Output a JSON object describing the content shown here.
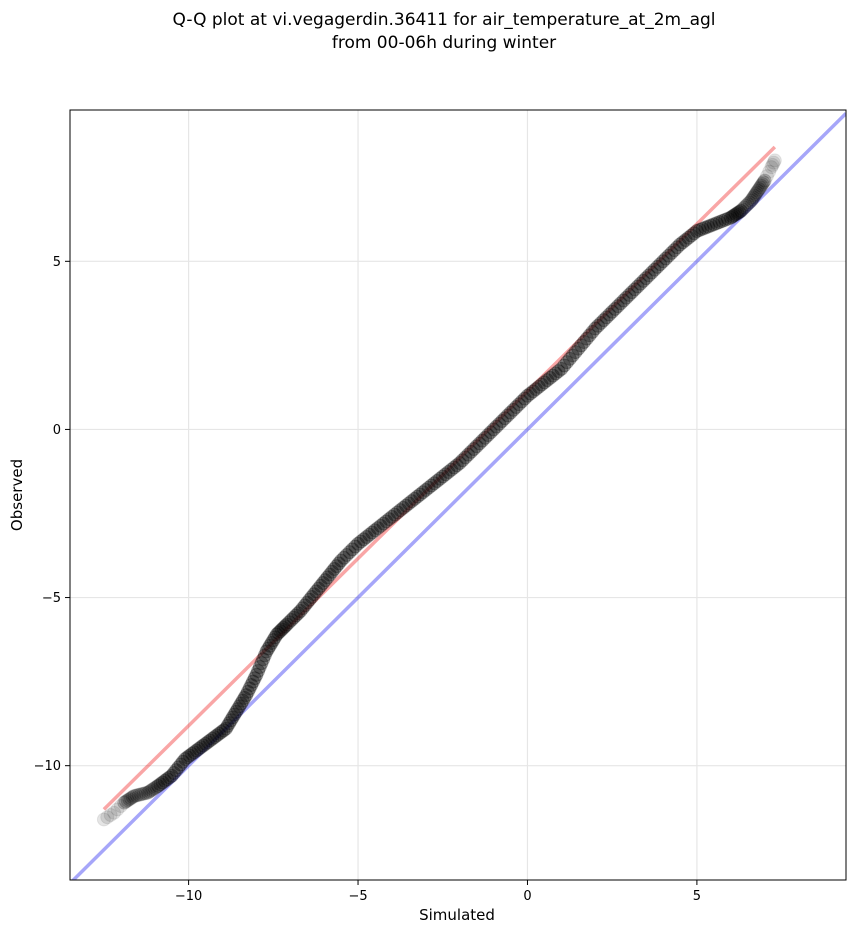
{
  "figure": {
    "title_line1": "Q-Q plot at vi.vegagerdin.36411 for air_temperature_at_2m_agl",
    "title_line2": "from 00-06h during winter"
  },
  "chart_data": {
    "type": "scatter",
    "title": "Q-Q plot at vi.vegagerdin.36411 for air_temperature_at_2m_agl from 00-06h during winter",
    "xlabel": "Simulated",
    "ylabel": "Observed",
    "xlim": [
      -13.5,
      9.4
    ],
    "ylim": [
      -13.4,
      9.5
    ],
    "xticks": [
      -10,
      -5,
      0,
      5
    ],
    "yticks": [
      -10,
      -5,
      0,
      5
    ],
    "xtick_labels": [
      "−10",
      "−5",
      "0",
      "5"
    ],
    "ytick_labels": [
      "−10",
      "−5",
      "0",
      "5"
    ],
    "grid": true,
    "colors": {
      "points": "#000000",
      "identity_line": "#0000ee",
      "fit_line": "#ee0000"
    },
    "quantiles_simulated": [
      -12.5,
      -12.2,
      -11.9,
      -11.6,
      -11.2,
      -10.9,
      -10.5,
      -10.1,
      -9.7,
      -9.3,
      -8.9,
      -8.6,
      -8.3,
      -8.0,
      -7.7,
      -7.4,
      -7.1,
      -6.7,
      -6.3,
      -5.9,
      -5.5,
      -5.0,
      -4.5,
      -4.0,
      -3.5,
      -3.0,
      -2.5,
      -2.0,
      -1.5,
      -1.0,
      -0.5,
      0.0,
      0.5,
      1.0,
      1.5,
      2.0,
      2.5,
      3.0,
      3.5,
      4.0,
      4.5,
      5.0,
      5.5,
      6.0,
      6.3,
      6.6,
      6.8,
      7.0,
      7.2,
      7.3
    ],
    "quantiles_observed": [
      -11.6,
      -11.4,
      -11.1,
      -10.9,
      -10.8,
      -10.6,
      -10.3,
      -9.8,
      -9.5,
      -9.2,
      -8.9,
      -8.4,
      -7.9,
      -7.3,
      -6.6,
      -6.1,
      -5.8,
      -5.4,
      -4.9,
      -4.4,
      -3.9,
      -3.4,
      -3.0,
      -2.6,
      -2.2,
      -1.8,
      -1.4,
      -1.0,
      -0.5,
      0.0,
      0.5,
      1.0,
      1.4,
      1.8,
      2.4,
      3.0,
      3.5,
      4.0,
      4.5,
      5.0,
      5.5,
      5.9,
      6.1,
      6.3,
      6.5,
      6.8,
      7.1,
      7.4,
      7.8,
      8.0
    ],
    "identity_line": {
      "x": [
        -13.5,
        9.4
      ],
      "y": [
        -13.5,
        9.4
      ]
    },
    "fit_line": {
      "x": [
        -12.5,
        7.3
      ],
      "y": [
        -11.3,
        8.4
      ]
    }
  }
}
